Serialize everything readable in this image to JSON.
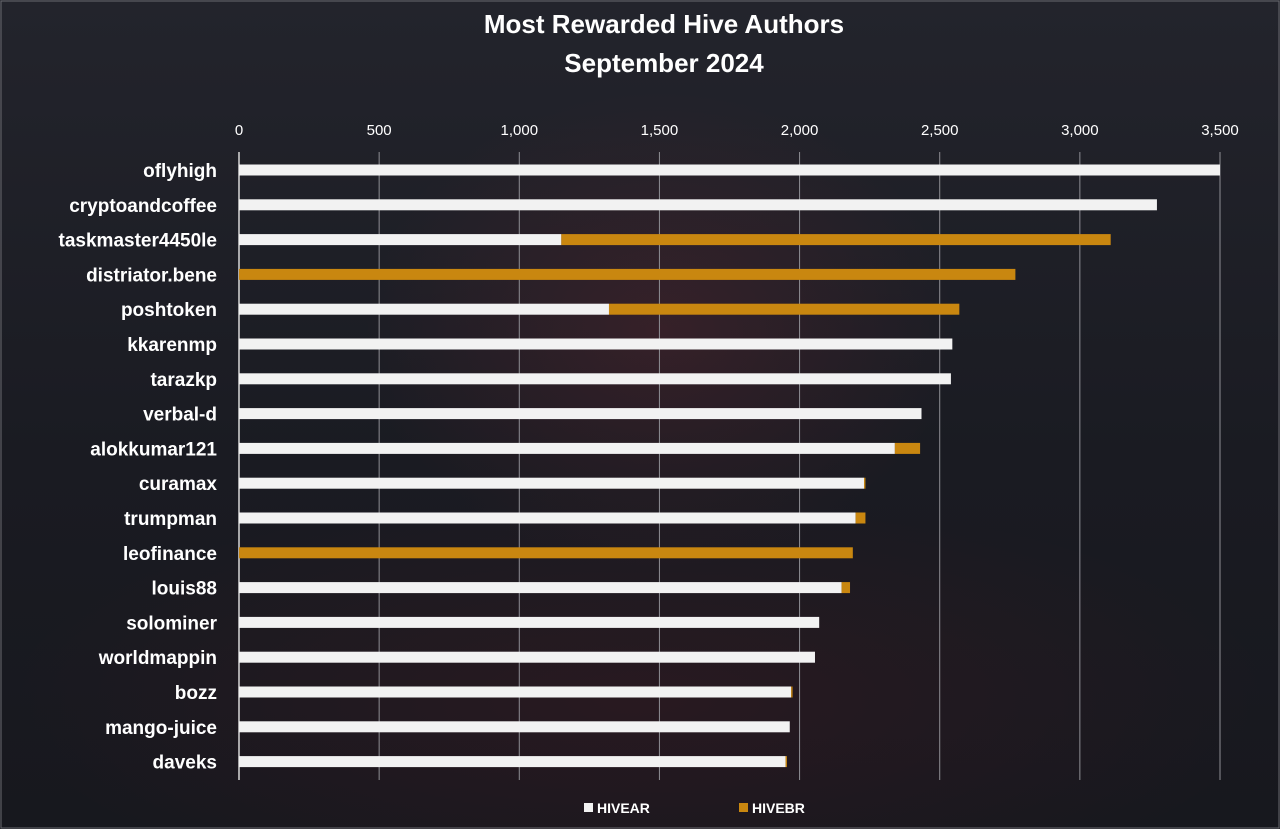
{
  "chart_data": {
    "type": "bar",
    "orientation": "horizontal",
    "stacked": true,
    "title": "Most Rewarded Hive Authors",
    "subtitle": "September 2024",
    "categories": [
      "oflyhigh",
      "cryptoandcoffee",
      "taskmaster4450le",
      "distriator.bene",
      "poshtoken",
      "kkarenmp",
      "tarazkp",
      "verbal-d",
      "alokkumar121",
      "curamax",
      "trumpman",
      "leofinance",
      "louis88",
      "solominer",
      "worldmappin",
      "bozz",
      "mango-juice",
      "daveks"
    ],
    "series": [
      {
        "name": "HIVEAR",
        "color": "#f2f2f2",
        "values": [
          3500,
          3275,
          1150,
          0,
          1320,
          2545,
          2540,
          2435,
          2340,
          2230,
          2200,
          0,
          2150,
          2070,
          2055,
          1970,
          1965,
          1950
        ]
      },
      {
        "name": "HIVEBR",
        "color": "#c98710",
        "values": [
          0,
          0,
          1960,
          2770,
          1250,
          0,
          0,
          0,
          90,
          5,
          35,
          2190,
          30,
          0,
          0,
          5,
          0,
          5
        ]
      }
    ],
    "xlim": [
      0,
      3500
    ],
    "xticks": [
      0,
      500,
      1000,
      1500,
      2000,
      2500,
      3000,
      3500
    ],
    "xtick_labels": [
      "0",
      "500",
      "1,000",
      "1,500",
      "2,000",
      "2,500",
      "3,000",
      "3,500"
    ],
    "grid": true,
    "legend_position": "bottom"
  }
}
